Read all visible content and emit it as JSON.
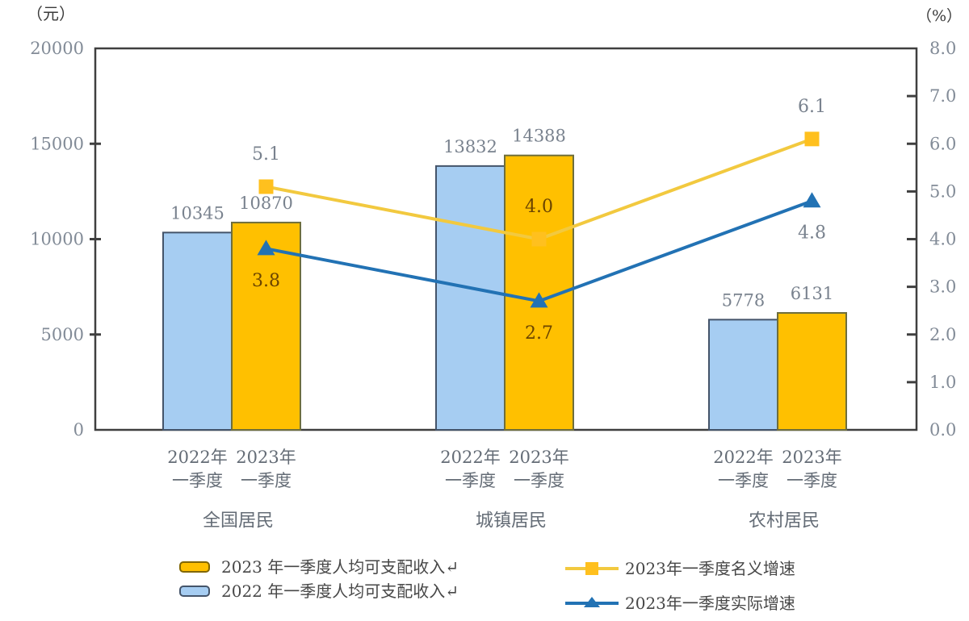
{
  "axis_units": {
    "left": "（元）",
    "right": "（%）"
  },
  "left_axis": {
    "tick_labels": [
      "20000",
      "15000",
      "10000",
      "5000",
      "0"
    ],
    "min": 0,
    "max": 20000
  },
  "right_axis": {
    "tick_labels": [
      "8.0",
      "7.0",
      "6.0",
      "5.0",
      "4.0",
      "3.0",
      "2.0",
      "1.0",
      "0.0"
    ],
    "min": 0,
    "max": 8
  },
  "chart_data": {
    "type": "bar+line combo",
    "categories": [
      "全国居民",
      "城镇居民",
      "农村居民"
    ],
    "bar_tick_labels": {
      "year_2022": "2022年",
      "year_2023": "2023年",
      "quarter": "一季度"
    },
    "bar_series": [
      {
        "name": "2022 年一季度人均可支配收入",
        "values": [
          10345,
          13832,
          5778
        ],
        "fill": "#A6CDF2",
        "stroke": "#44546A"
      },
      {
        "name": "2023 年一季度人均可支配收入",
        "values": [
          10870,
          14388,
          6131
        ],
        "fill": "#FFC000",
        "stroke": "#6E6E3C"
      }
    ],
    "line_series": [
      {
        "name": "2023年一季度名义增速",
        "values": [
          5.1,
          4.0,
          6.1
        ],
        "color": "#F2C93F",
        "marker": "square",
        "marker_color": "#FFC01E",
        "label_side": "above",
        "label_colors": [
          "#79828E",
          "#6B4400",
          "#79828E"
        ]
      },
      {
        "name": "2023年一季度实际增速",
        "values": [
          3.8,
          2.7,
          4.8
        ],
        "color": "#2272B4",
        "marker": "triangle",
        "marker_color": "#2272B4",
        "label_side": "below",
        "label_colors": [
          "#6B4400",
          "#6B4400",
          "#79828E"
        ]
      }
    ],
    "ylim_left": [
      0,
      20000
    ],
    "ylim_right": [
      0,
      8
    ],
    "value_label_color": "#79828E",
    "tick_label_color": "#828B97",
    "xlabel_color": "#646C76",
    "axis_color": "#3F3F3F"
  },
  "legend": {
    "rows_left": [
      {
        "label": "2023 年一季度人均可支配收入↵",
        "series_ref": 1
      },
      {
        "label": "2022 年一季度人均可支配收入↵",
        "series_ref": 0
      }
    ],
    "rows_right": [
      {
        "label": "2023年一季度名义增速",
        "series_ref": 0
      },
      {
        "label": "2023年一季度实际增速",
        "series_ref": 1
      }
    ]
  }
}
